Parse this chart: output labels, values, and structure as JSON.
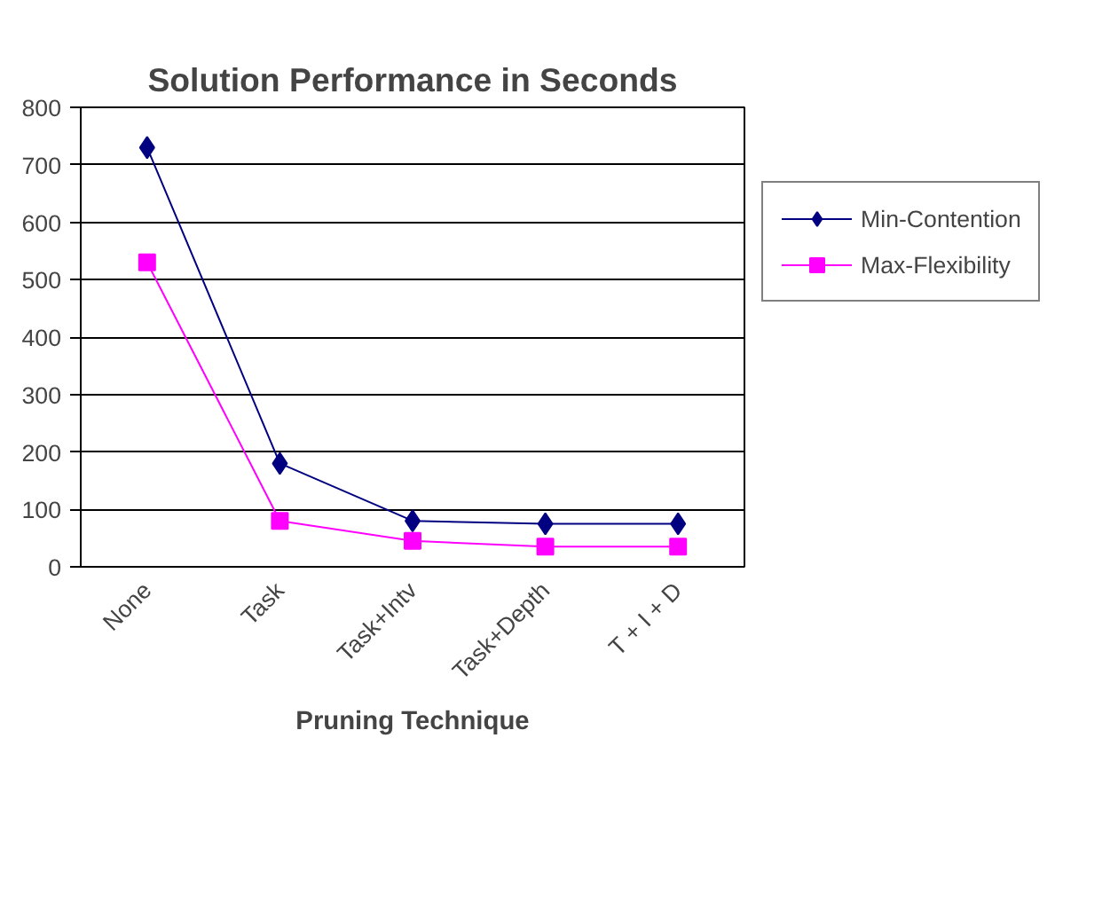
{
  "chart_data": {
    "type": "line",
    "title": "Solution Performance in Seconds",
    "xlabel": "Pruning Technique",
    "categories": [
      "None",
      "Task",
      "Task+Intv",
      "Task+Depth",
      "T + I + D"
    ],
    "series": [
      {
        "name": "Min-Contention",
        "color": "#000080",
        "values": [
          730,
          180,
          80,
          75,
          75
        ],
        "marker": "diamond"
      },
      {
        "name": "Max-Flexibility",
        "color": "#ff00ff",
        "values": [
          530,
          80,
          45,
          35,
          35
        ],
        "marker": "square"
      }
    ],
    "ylim": [
      0,
      800
    ],
    "yticks": [
      0,
      100,
      200,
      300,
      400,
      500,
      600,
      700,
      800
    ],
    "grid": "y",
    "legend": "right",
    "line_style": "solid"
  }
}
